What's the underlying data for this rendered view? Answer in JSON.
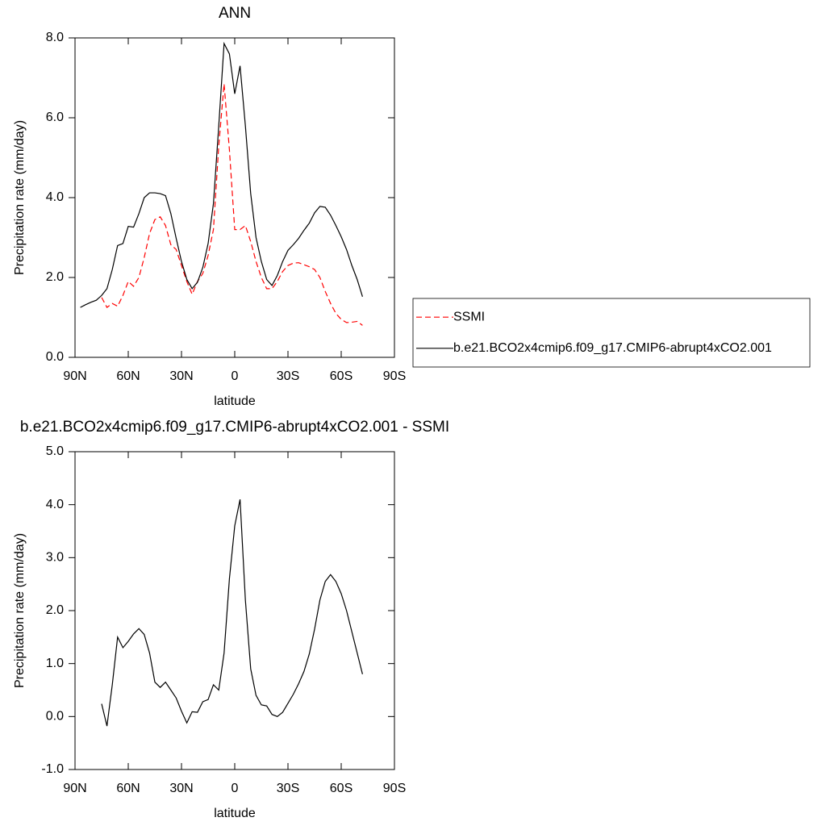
{
  "chart_data": [
    {
      "type": "line",
      "title": "ANN",
      "xlabel": "latitude",
      "ylabel": "Precipitation rate (mm/day)",
      "x": [
        87,
        84,
        81,
        78,
        75,
        72,
        69,
        66,
        63,
        60,
        57,
        54,
        51,
        48,
        45,
        42,
        39,
        36,
        33,
        30,
        27,
        24,
        21,
        18,
        15,
        12,
        9,
        6,
        3,
        0,
        -3,
        -6,
        -9,
        -12,
        -15,
        -18,
        -21,
        -24,
        -27,
        -30,
        -33,
        -36,
        -39,
        -42,
        -45,
        -48,
        -51,
        -54,
        -57,
        -60,
        -63,
        -66,
        -69,
        -72
      ],
      "xlim": [
        90,
        -90
      ],
      "xticks": [
        {
          "value": 90,
          "label": "90N"
        },
        {
          "value": 60,
          "label": "60N"
        },
        {
          "value": 30,
          "label": "30N"
        },
        0,
        {
          "value": -30,
          "label": "30S"
        },
        {
          "value": -60,
          "label": "60S"
        },
        {
          "value": -90,
          "label": "90S"
        }
      ],
      "ylim": [
        0,
        8
      ],
      "yticks": [
        {
          "value": 0,
          "label": "0.0"
        },
        {
          "value": 2,
          "label": "2.0"
        },
        {
          "value": 4,
          "label": "4.0"
        },
        {
          "value": 6,
          "label": "6.0"
        },
        {
          "value": 8,
          "label": "8.0"
        }
      ],
      "series": [
        {
          "name": "SSMI",
          "color": "#ff0000",
          "dashed": true,
          "values": [
            null,
            null,
            null,
            null,
            1.5,
            1.25,
            1.35,
            1.28,
            1.55,
            1.9,
            1.78,
            2.0,
            2.5,
            3.1,
            3.45,
            3.52,
            3.3,
            2.82,
            2.7,
            2.3,
            1.9,
            1.58,
            1.9,
            2.1,
            2.55,
            3.2,
            5.3,
            6.85,
            5.2,
            3.2,
            3.2,
            3.3,
            2.9,
            2.4,
            2.0,
            1.72,
            1.72,
            1.9,
            2.15,
            2.3,
            2.36,
            2.37,
            2.32,
            2.27,
            2.2,
            2.0,
            1.65,
            1.35,
            1.1,
            0.95,
            0.87,
            0.88,
            0.9,
            0.8
          ]
        },
        {
          "name": "b.e21.BCO2x4cmip6.f09_g17.CMIP6-abrupt4xCO2.001",
          "color": "#000000",
          "dashed": false,
          "values": [
            1.25,
            1.32,
            1.38,
            1.43,
            1.55,
            1.72,
            2.2,
            2.8,
            2.85,
            3.28,
            3.26,
            3.6,
            4.0,
            4.12,
            4.12,
            4.1,
            4.05,
            3.6,
            2.98,
            2.4,
            1.95,
            1.72,
            1.88,
            2.25,
            2.85,
            3.85,
            5.8,
            7.86,
            7.6,
            6.6,
            7.3,
            5.8,
            4.1,
            3.0,
            2.4,
            1.95,
            1.8,
            2.05,
            2.4,
            2.68,
            2.82,
            2.98,
            3.18,
            3.36,
            3.62,
            3.78,
            3.76,
            3.56,
            3.3,
            3.02,
            2.7,
            2.3,
            1.95,
            1.52
          ]
        }
      ]
    },
    {
      "type": "line",
      "title": "b.e21.BCO2x4cmip6.f09_g17.CMIP6-abrupt4xCO2.001 - SSMI",
      "xlabel": "latitude",
      "ylabel": "Precipitation rate (mm/day)",
      "x": [
        75,
        72,
        69,
        66,
        63,
        60,
        57,
        54,
        51,
        48,
        45,
        42,
        39,
        36,
        33,
        30,
        27,
        24,
        21,
        18,
        15,
        12,
        9,
        6,
        3,
        0,
        -3,
        -6,
        -9,
        -12,
        -15,
        -18,
        -21,
        -24,
        -27,
        -30,
        -33,
        -36,
        -39,
        -42,
        -45,
        -48,
        -51,
        -54,
        -57,
        -60,
        -63,
        -66,
        -69,
        -72
      ],
      "xlim": [
        90,
        -90
      ],
      "xticks": [
        {
          "value": 90,
          "label": "90N"
        },
        {
          "value": 60,
          "label": "60N"
        },
        {
          "value": 30,
          "label": "30N"
        },
        0,
        {
          "value": -30,
          "label": "30S"
        },
        {
          "value": -60,
          "label": "60S"
        },
        {
          "value": -90,
          "label": "90S"
        }
      ],
      "ylim": [
        -1,
        5
      ],
      "yticks": [
        {
          "value": -1,
          "label": "-1.0"
        },
        {
          "value": 0,
          "label": "0.0"
        },
        {
          "value": 1,
          "label": "1.0"
        },
        {
          "value": 2,
          "label": "2.0"
        },
        {
          "value": 3,
          "label": "3.0"
        },
        {
          "value": 4,
          "label": "4.0"
        },
        {
          "value": 5,
          "label": "5.0"
        }
      ],
      "series": [
        {
          "color": "#000000",
          "dashed": false,
          "values": [
            0.24,
            -0.18,
            0.6,
            1.5,
            1.3,
            1.42,
            1.56,
            1.66,
            1.55,
            1.2,
            0.65,
            0.55,
            0.65,
            0.5,
            0.35,
            0.1,
            -0.12,
            0.09,
            0.08,
            0.28,
            0.32,
            0.6,
            0.5,
            1.2,
            2.6,
            3.6,
            4.1,
            2.2,
            0.9,
            0.4,
            0.22,
            0.2,
            0.04,
            0.0,
            0.08,
            0.25,
            0.42,
            0.62,
            0.85,
            1.18,
            1.65,
            2.2,
            2.55,
            2.68,
            2.55,
            2.32,
            2.0,
            1.6,
            1.2,
            0.8
          ]
        }
      ]
    }
  ]
}
